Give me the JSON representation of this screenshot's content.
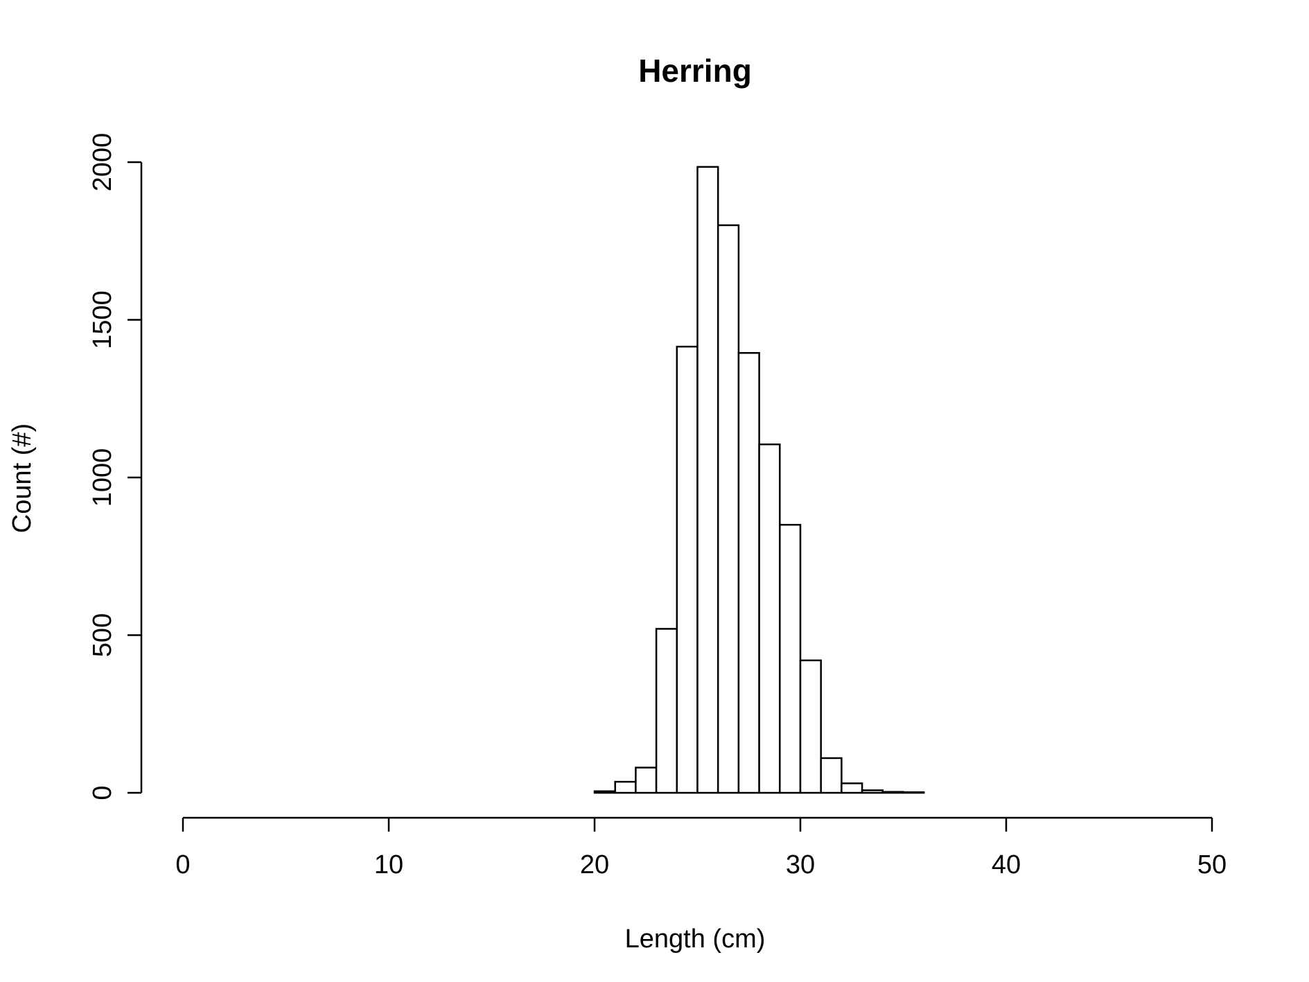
{
  "chart_data": {
    "type": "bar",
    "title": "Herring",
    "xlabel": "Length (cm)",
    "ylabel": "Count (#)",
    "xlim": [
      0,
      50
    ],
    "ylim": [
      0,
      2000
    ],
    "x_ticks": [
      0,
      10,
      20,
      30,
      40,
      50
    ],
    "y_ticks": [
      0,
      500,
      1000,
      1500,
      2000
    ],
    "bin_width": 1,
    "bins": [
      0,
      1,
      2,
      3,
      4,
      5,
      6,
      7,
      8,
      9,
      10,
      11,
      12,
      13,
      14,
      15,
      16,
      17,
      18,
      19,
      20,
      21,
      22,
      23,
      24,
      25,
      26,
      27,
      28,
      29,
      30,
      31,
      32,
      33,
      34,
      35,
      36,
      37,
      38,
      39,
      40,
      41,
      42,
      43,
      44,
      45,
      46,
      47,
      48,
      49
    ],
    "values": [
      0,
      0,
      0,
      0,
      0,
      0,
      0,
      0,
      0,
      0,
      0,
      0,
      0,
      0,
      0,
      0,
      0,
      0,
      0,
      0,
      5,
      35,
      80,
      520,
      1415,
      1985,
      1800,
      1395,
      1105,
      850,
      420,
      110,
      30,
      8,
      3,
      2,
      0,
      0,
      0,
      0,
      0,
      0,
      0,
      0,
      0,
      0,
      0,
      0,
      0,
      0
    ],
    "bar_fill": "#ffffff",
    "bar_stroke": "#000000",
    "grid": false,
    "legend": "none"
  }
}
